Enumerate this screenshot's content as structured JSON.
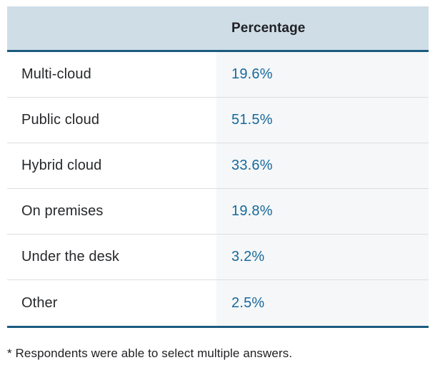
{
  "chart_data": {
    "type": "table",
    "categories": [
      "Multi-cloud",
      "Public cloud",
      "Hybrid cloud",
      "On premises",
      "Under the desk",
      "Other"
    ],
    "values": [
      19.6,
      51.5,
      33.6,
      19.8,
      3.2,
      2.5
    ],
    "title": "",
    "column_header": "Percentage",
    "footnote": "* Respondents were able to select multiple answers.",
    "legend_position": "none",
    "grid": false
  },
  "table": {
    "header": {
      "label_column": "",
      "value_column": "Percentage"
    },
    "rows": [
      {
        "label": "Multi-cloud",
        "value": "19.6%"
      },
      {
        "label": "Public cloud",
        "value": "51.5%"
      },
      {
        "label": "Hybrid cloud",
        "value": "33.6%"
      },
      {
        "label": "On premises",
        "value": "19.8%"
      },
      {
        "label": "Under the desk",
        "value": "3.2%"
      },
      {
        "label": "Other",
        "value": "2.5%"
      }
    ]
  },
  "footnote": "* Respondents were able to select multiple answers.",
  "colors": {
    "header_background": "#cedde6",
    "value_column_background": "#f5f7f8",
    "accent_border": "#1b5b80",
    "row_separator": "#dcdedf",
    "value_text": "#17699c",
    "label_text": "#26282b"
  }
}
